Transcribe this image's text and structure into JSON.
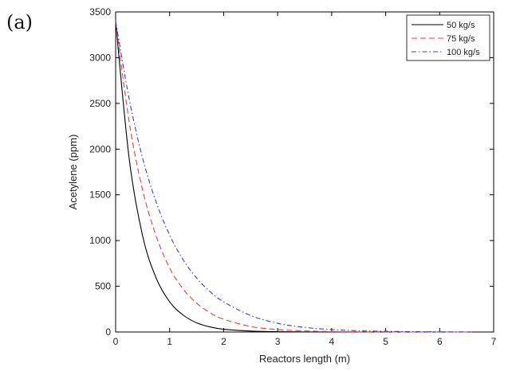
{
  "panel_label": "(a)",
  "chart_data": {
    "type": "line",
    "xlabel": "Reactors length (m)",
    "ylabel": "Acetylene (ppm)",
    "xlim": [
      0,
      7
    ],
    "ylim": [
      0,
      3500
    ],
    "xticks": [
      0,
      1,
      2,
      3,
      4,
      5,
      6,
      7
    ],
    "yticks": [
      0,
      500,
      1000,
      1500,
      2000,
      2500,
      3000,
      3500
    ],
    "grid": false,
    "legend_position": "top-right",
    "x": [
      0,
      0.25,
      0.5,
      0.75,
      1,
      1.25,
      1.5,
      1.75,
      2,
      2.5,
      3,
      3.5,
      4,
      4.5,
      5,
      5.5,
      6,
      6.6
    ],
    "series": [
      {
        "name": "50 kg/s",
        "color": "#000000",
        "dash": "solid",
        "values": [
          3400,
          1900,
          1050,
          590,
          330,
          185,
          100,
          55,
          30,
          10,
          3,
          1,
          0,
          0,
          0,
          0,
          0,
          0
        ]
      },
      {
        "name": "75 kg/s",
        "color": "#e8413f",
        "dash": "dashed",
        "values": [
          3400,
          2300,
          1550,
          1050,
          700,
          470,
          315,
          210,
          140,
          60,
          27,
          12,
          5,
          2,
          1,
          0,
          0,
          0
        ]
      },
      {
        "name": "100 kg/s",
        "color": "#3b3bd9",
        "dash": "dashdot",
        "values": [
          3400,
          2550,
          1900,
          1420,
          1060,
          790,
          590,
          440,
          330,
          180,
          95,
          50,
          27,
          14,
          8,
          4,
          2,
          1
        ]
      }
    ]
  }
}
